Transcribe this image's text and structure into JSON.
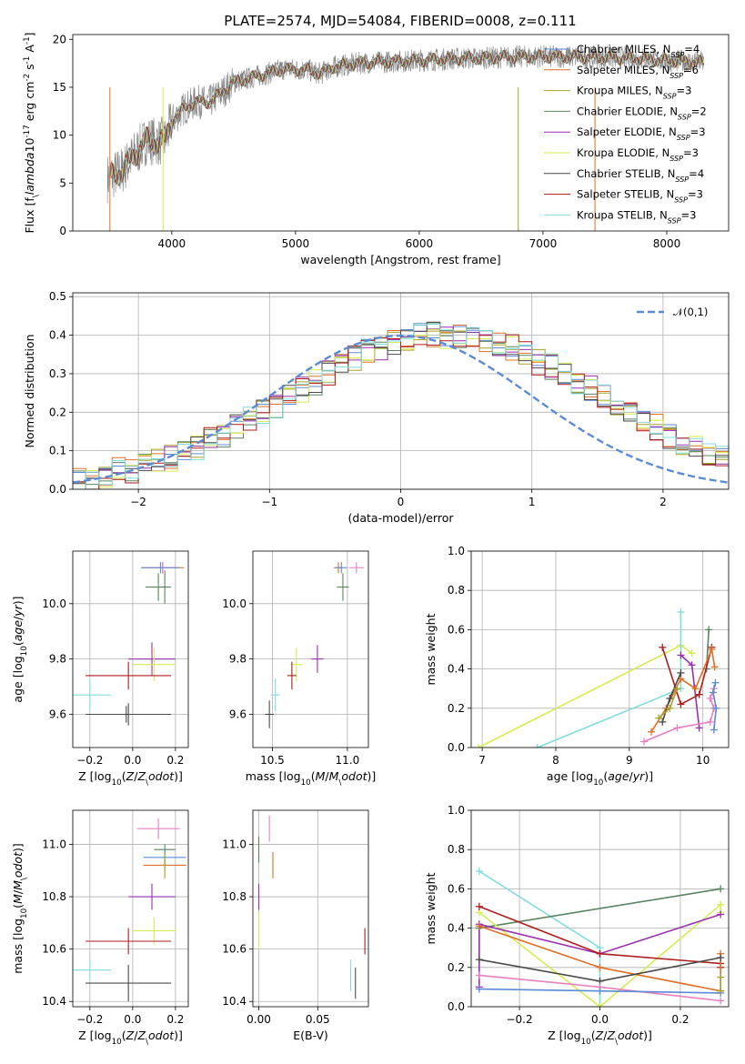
{
  "colors": {
    "chabrier_miles": "#5b8bd6",
    "salpeter_miles": "#e07028",
    "kroupa_miles": "#a8a02a",
    "chabrier_elodie": "#5a8460",
    "salpeter_elodie": "#9a2fb0",
    "kroupa_elodie": "#d6ec50",
    "chabrier_stelib": "#4a4a4a",
    "salpeter_stelib": "#b01c1c",
    "kroupa_stelib": "#82dcdc",
    "pink": "#ea7fc0",
    "data": "#808080",
    "normal": "#5b8bd6"
  },
  "title": "PLATE=2574, MJD=54084, FIBERID=0008, z=0.111",
  "legend_models": [
    "Chabrier MILES, N$_{SSP}$=4",
    "Salpeter MILES, N$_{SSP}$=6",
    "Kroupa MILES, N$_{SSP}$=3",
    "Chabrier ELODIE, N$_{SSP}$=2",
    "Salpeter ELODIE, N$_{SSP}$=3",
    "Kroupa ELODIE, N$_{SSP}$=3",
    "Chabrier STELIB, N$_{SSP}$=4",
    "Salpeter STELIB, N$_{SSP}$=3",
    "Kroupa STELIB, N$_{SSP}$=3"
  ],
  "chart_data": [
    {
      "type": "line",
      "title": "PLATE=2574, MJD=54084, FIBERID=0008, z=0.111",
      "xlabel": "wavelength [Angstrom, rest frame]",
      "ylabel": "Flux [f$_\\lambda$10$^{-17}$ erg cm$^{-2}$ s$^{-1}$ A$^{-1}$]",
      "xlim": [
        3200,
        8500
      ],
      "ylim": [
        0,
        20.5
      ],
      "xticks": [
        4000,
        5000,
        6000,
        7000,
        8000
      ],
      "yticks": [
        0,
        5,
        10,
        15,
        20
      ],
      "legend_position": "upper right",
      "continuum": {
        "x": [
          3480,
          3550,
          3600,
          3700,
          3800,
          3900,
          3950,
          4000,
          4100,
          4200,
          4300,
          4400,
          4500,
          4700,
          4900,
          5100,
          5200,
          5300,
          5500,
          5800,
          6000,
          6300,
          6600,
          6900,
          7200,
          7500,
          7800,
          8000,
          8300
        ],
        "y": [
          5.5,
          6.0,
          6.3,
          8.0,
          9.5,
          9.3,
          9.5,
          11.5,
          12.8,
          13.5,
          13.4,
          14.4,
          15.5,
          16.2,
          16.9,
          16.8,
          16.4,
          17.1,
          17.5,
          17.7,
          17.8,
          18.0,
          18.1,
          18.2,
          18.2,
          18.1,
          18.0,
          17.8,
          17.6
        ]
      },
      "data_range": [
        3480,
        8300
      ],
      "model_range": [
        3500,
        8300
      ],
      "series": [
        {
          "name": "Chabrier MILES, N$_{SSP}$=4",
          "color_key": "chabrier_miles"
        },
        {
          "name": "Salpeter MILES, N$_{SSP}$=6",
          "color_key": "salpeter_miles"
        },
        {
          "name": "Kroupa MILES, N$_{SSP}$=3",
          "color_key": "kroupa_miles"
        },
        {
          "name": "Chabrier ELODIE, N$_{SSP}$=2",
          "color_key": "chabrier_elodie"
        },
        {
          "name": "Salpeter ELODIE, N$_{SSP}$=3",
          "color_key": "salpeter_elodie"
        },
        {
          "name": "Kroupa ELODIE, N$_{SSP}$=3",
          "color_key": "kroupa_elodie"
        },
        {
          "name": "Chabrier STELIB, N$_{SSP}$=4",
          "color_key": "chabrier_stelib"
        },
        {
          "name": "Salpeter STELIB, N$_{SSP}$=3",
          "color_key": "salpeter_stelib"
        },
        {
          "name": "Kroupa STELIB, N$_{SSP}$=3",
          "color_key": "kroupa_stelib"
        }
      ]
    },
    {
      "type": "step",
      "xlabel": "(data-model)/error",
      "ylabel": "Normed distribution",
      "xlim": [
        -2.5,
        2.5
      ],
      "ylim": [
        0,
        0.51
      ],
      "xticks": [
        -2,
        -1,
        0,
        1,
        2
      ],
      "yticks": [
        0.0,
        0.1,
        0.2,
        0.3,
        0.4,
        0.5
      ],
      "grid": true,
      "legend": "$\\mathcal{N}(0,1)$",
      "legend_position": "upper right",
      "bin_width": 0.1,
      "base_values": [
        0.02,
        0.02,
        0.03,
        0.05,
        0.05,
        0.06,
        0.07,
        0.08,
        0.1,
        0.11,
        0.13,
        0.14,
        0.16,
        0.18,
        0.2,
        0.22,
        0.24,
        0.26,
        0.28,
        0.3,
        0.32,
        0.34,
        0.36,
        0.37,
        0.38,
        0.39,
        0.4,
        0.4,
        0.4,
        0.4,
        0.4,
        0.39,
        0.38,
        0.37,
        0.35,
        0.33,
        0.32,
        0.3,
        0.28,
        0.26,
        0.24,
        0.22,
        0.2,
        0.18,
        0.16,
        0.14,
        0.12,
        0.11,
        0.09,
        0.08,
        0.07,
        0.06,
        0.05,
        0.04,
        0.03
      ],
      "series_keys": [
        "chabrier_miles",
        "salpeter_miles",
        "kroupa_miles",
        "chabrier_elodie",
        "salpeter_elodie",
        "kroupa_elodie",
        "chabrier_stelib",
        "salpeter_stelib",
        "kroupa_stelib"
      ],
      "normal_curve": {
        "mean": 0,
        "sigma": 1,
        "color_key": "normal"
      }
    },
    {
      "type": "scatter",
      "xlabel": "Z [log$_{10}$($Z/Z_\\odot$)]",
      "ylabel": "age  [log$_{10}$($age/yr$)]",
      "xlim": [
        -0.28,
        0.26
      ],
      "ylim": [
        9.48,
        10.19
      ],
      "xticks": [
        -0.2,
        0.0,
        0.2
      ],
      "yticks": [
        9.6,
        9.8,
        10.0
      ],
      "points": [
        {
          "x": 0.14,
          "y": 10.13,
          "xerr": 0.1,
          "yerr": 0.02,
          "c": "salpeter_miles"
        },
        {
          "x": 0.14,
          "y": 10.13,
          "xerr": 0.08,
          "yerr": 0.02,
          "c": "pink"
        },
        {
          "x": 0.13,
          "y": 10.13,
          "xerr": 0.09,
          "yerr": 0.02,
          "c": "chabrier_miles"
        },
        {
          "x": 0.12,
          "y": 10.06,
          "xerr": 0.06,
          "yerr": 0.05,
          "c": "chabrier_elodie"
        },
        {
          "x": 0.15,
          "y": 10.06,
          "xerr": 0.01,
          "yerr": 0.06,
          "c": "chabrier_elodie"
        },
        {
          "x": 0.09,
          "y": 9.8,
          "xerr": 0.11,
          "yerr": 0.06,
          "c": "salpeter_elodie"
        },
        {
          "x": 0.1,
          "y": 9.78,
          "xerr": 0.1,
          "yerr": 0.06,
          "c": "kroupa_elodie"
        },
        {
          "x": -0.02,
          "y": 9.74,
          "xerr": 0.2,
          "yerr": 0.05,
          "c": "salpeter_stelib"
        },
        {
          "x": -0.2,
          "y": 9.67,
          "xerr": 0.1,
          "yerr": 0.06,
          "c": "kroupa_stelib"
        },
        {
          "x": -0.02,
          "y": 9.6,
          "xerr": 0.2,
          "yerr": 0.04,
          "c": "chabrier_stelib"
        },
        {
          "x": -0.03,
          "y": 9.6,
          "xerr": 0.01,
          "yerr": 0.03,
          "c": "chabrier_stelib"
        }
      ]
    },
    {
      "type": "scatter",
      "xlabel": "mass [log$_{10}$($M/M_\\odot$)]",
      "ylabel": "",
      "xlim": [
        10.37,
        11.14
      ],
      "ylim": [
        9.48,
        10.19
      ],
      "xticks": [
        10.5,
        11.0
      ],
      "yticks": [
        9.6,
        9.8,
        10.0
      ],
      "points": [
        {
          "x": 11.06,
          "y": 10.13,
          "xerr": 0.05,
          "yerr": 0.02,
          "c": "pink"
        },
        {
          "x": 10.94,
          "y": 10.13,
          "xerr": 0.03,
          "yerr": 0.02,
          "c": "salpeter_miles"
        },
        {
          "x": 10.96,
          "y": 10.13,
          "xerr": 0.04,
          "yerr": 0.02,
          "c": "chabrier_miles"
        },
        {
          "x": 10.97,
          "y": 10.06,
          "xerr": 0.04,
          "yerr": 0.05,
          "c": "chabrier_elodie"
        },
        {
          "x": 10.8,
          "y": 9.8,
          "xerr": 0.04,
          "yerr": 0.05,
          "c": "salpeter_elodie"
        },
        {
          "x": 10.66,
          "y": 9.78,
          "xerr": 0.04,
          "yerr": 0.06,
          "c": "kroupa_elodie"
        },
        {
          "x": 10.63,
          "y": 9.74,
          "xerr": 0.03,
          "yerr": 0.05,
          "c": "salpeter_stelib"
        },
        {
          "x": 10.52,
          "y": 9.67,
          "xerr": 0.03,
          "yerr": 0.06,
          "c": "kroupa_stelib"
        },
        {
          "x": 10.48,
          "y": 9.6,
          "xerr": 0.03,
          "yerr": 0.05,
          "c": "chabrier_stelib"
        }
      ]
    },
    {
      "type": "line",
      "xlabel": "age  [log$_{10}$($age/yr$)]",
      "ylabel": "mass weight",
      "xlim": [
        6.85,
        10.35
      ],
      "ylim": [
        0,
        1
      ],
      "xticks": [
        7,
        8,
        9,
        10
      ],
      "yticks": [
        0.0,
        0.2,
        0.4,
        0.6,
        0.8,
        1.0
      ],
      "series": [
        {
          "c": "kroupa_elodie",
          "x": [
            6.95,
            9.7,
            9.85
          ],
          "y": [
            0.0,
            0.52,
            0.48
          ]
        },
        {
          "c": "kroupa_stelib",
          "x": [
            7.75,
            9.7,
            9.7
          ],
          "y": [
            0.0,
            0.3,
            0.69
          ]
        },
        {
          "c": "chabrier_elodie",
          "x": [
            10.05,
            10.08
          ],
          "y": [
            0.4,
            0.6
          ]
        },
        {
          "c": "salpeter_elodie",
          "x": [
            9.7,
            9.85,
            9.95
          ],
          "y": [
            0.47,
            0.42,
            0.1
          ]
        },
        {
          "c": "salpeter_stelib",
          "x": [
            9.45,
            9.7,
            9.95,
            10.12
          ],
          "y": [
            0.51,
            0.22,
            0.27,
            0.51
          ]
        },
        {
          "c": "salpeter_miles",
          "x": [
            9.3,
            9.5,
            9.7,
            9.9,
            10.12,
            10.16
          ],
          "y": [
            0.08,
            0.2,
            0.35,
            0.3,
            0.5,
            0.41
          ]
        },
        {
          "c": "chabrier_stelib",
          "x": [
            9.45,
            9.55,
            9.7
          ],
          "y": [
            0.13,
            0.25,
            0.38
          ]
        },
        {
          "c": "kroupa_miles",
          "x": [
            9.4,
            9.55,
            9.65
          ],
          "y": [
            0.15,
            0.2,
            0.3
          ]
        },
        {
          "c": "pink",
          "x": [
            9.2,
            9.65,
            10.1,
            10.15,
            10.1,
            10.15
          ],
          "y": [
            0.03,
            0.1,
            0.13,
            0.2,
            0.25,
            0.3
          ]
        },
        {
          "c": "chabrier_miles",
          "x": [
            10.15,
            10.18,
            10.14,
            10.17
          ],
          "y": [
            0.09,
            0.2,
            0.28,
            0.33
          ]
        }
      ]
    },
    {
      "type": "scatter",
      "xlabel": "Z [log$_{10}$($Z/Z_\\odot$)]",
      "ylabel": "mass [log$_{10}$($M/M_\\odot$)]",
      "xlim": [
        -0.28,
        0.26
      ],
      "ylim": [
        10.38,
        11.13
      ],
      "xticks": [
        -0.2,
        0.0,
        0.2
      ],
      "yticks": [
        10.4,
        10.6,
        10.8,
        11.0
      ],
      "points": [
        {
          "x": 0.12,
          "y": 11.06,
          "xerr": 0.1,
          "yerr": 0.04,
          "c": "pink"
        },
        {
          "x": 0.15,
          "y": 10.98,
          "xerr": 0.05,
          "yerr": 0.02,
          "c": "chabrier_elodie"
        },
        {
          "x": 0.15,
          "y": 10.95,
          "xerr": 0.1,
          "yerr": 0.03,
          "c": "chabrier_miles"
        },
        {
          "x": 0.15,
          "y": 10.92,
          "xerr": 0.1,
          "yerr": 0.02,
          "c": "salpeter_miles"
        },
        {
          "x": 0.15,
          "y": 10.92,
          "xerr": 0.01,
          "yerr": 0.05,
          "c": "kroupa_miles"
        },
        {
          "x": 0.09,
          "y": 10.8,
          "xerr": 0.11,
          "yerr": 0.05,
          "c": "salpeter_elodie"
        },
        {
          "x": 0.1,
          "y": 10.67,
          "xerr": 0.1,
          "yerr": 0.05,
          "c": "kroupa_elodie"
        },
        {
          "x": -0.02,
          "y": 10.63,
          "xerr": 0.2,
          "yerr": 0.05,
          "c": "salpeter_stelib"
        },
        {
          "x": -0.2,
          "y": 10.52,
          "xerr": 0.1,
          "yerr": 0.04,
          "c": "kroupa_stelib"
        },
        {
          "x": -0.02,
          "y": 10.47,
          "xerr": 0.2,
          "yerr": 0.07,
          "c": "chabrier_stelib"
        }
      ]
    },
    {
      "type": "scatter",
      "xlabel": "E(B-V)",
      "ylabel": "",
      "xlim": [
        -0.005,
        0.093
      ],
      "ylim": [
        10.38,
        11.13
      ],
      "xticks": [
        0.0,
        0.05
      ],
      "yticks": [
        10.4,
        10.6,
        10.8,
        11.0
      ],
      "points": [
        {
          "x": 0.009,
          "y": 11.06,
          "xerr": 0.0,
          "yerr": 0.05,
          "c": "pink"
        },
        {
          "x": 0.0,
          "y": 10.98,
          "xerr": 0.0,
          "yerr": 0.05,
          "c": "chabrier_elodie"
        },
        {
          "x": 0.012,
          "y": 10.92,
          "xerr": 0.0,
          "yerr": 0.05,
          "c": "salpeter_miles"
        },
        {
          "x": 0.0,
          "y": 10.8,
          "xerr": 0.0,
          "yerr": 0.05,
          "c": "salpeter_elodie"
        },
        {
          "x": 0.0,
          "y": 10.67,
          "xerr": 0.0,
          "yerr": 0.07,
          "c": "kroupa_elodie"
        },
        {
          "x": 0.09,
          "y": 10.63,
          "xerr": 0.0,
          "yerr": 0.05,
          "c": "salpeter_stelib"
        },
        {
          "x": 0.078,
          "y": 10.5,
          "xerr": 0.0,
          "yerr": 0.06,
          "c": "kroupa_stelib"
        },
        {
          "x": 0.082,
          "y": 10.47,
          "xerr": 0.0,
          "yerr": 0.06,
          "c": "chabrier_stelib"
        }
      ]
    },
    {
      "type": "line",
      "xlabel": "Z [log$_{10}$($Z/Z_\\odot$)]",
      "ylabel": "mass weight",
      "xlim": [
        -0.32,
        0.32
      ],
      "ylim": [
        0,
        1
      ],
      "xticks": [
        -0.2,
        0.0,
        0.2
      ],
      "yticks": [
        0.0,
        0.2,
        0.4,
        0.6,
        0.8,
        1.0
      ],
      "series": [
        {
          "c": "kroupa_stelib",
          "x": [
            -0.3,
            0.0,
            0.0
          ],
          "y": [
            0.69,
            0.3,
            0.0
          ]
        },
        {
          "c": "chabrier_elodie",
          "x": [
            -0.3,
            0.3
          ],
          "y": [
            0.4,
            0.6
          ]
        },
        {
          "c": "kroupa_elodie",
          "x": [
            -0.3,
            0.0,
            0.3,
            0.3
          ],
          "y": [
            0.48,
            0.0,
            0.52,
            0.48
          ]
        },
        {
          "c": "salpeter_elodie",
          "x": [
            -0.3,
            -0.3,
            0.0,
            0.3
          ],
          "y": [
            0.1,
            0.42,
            0.27,
            0.47
          ]
        },
        {
          "c": "salpeter_stelib",
          "x": [
            -0.3,
            0.0,
            0.3,
            0.3
          ],
          "y": [
            0.51,
            0.27,
            0.22,
            0.2
          ]
        },
        {
          "c": "salpeter_miles",
          "x": [
            -0.3,
            0.0,
            0.3,
            0.3
          ],
          "y": [
            0.41,
            0.2,
            0.08,
            0.27
          ]
        },
        {
          "c": "chabrier_stelib",
          "x": [
            -0.3,
            0.0,
            0.3
          ],
          "y": [
            0.24,
            0.13,
            0.25
          ]
        },
        {
          "c": "pink",
          "x": [
            -0.3,
            0.0,
            0.3
          ],
          "y": [
            0.16,
            0.1,
            0.03
          ]
        },
        {
          "c": "chabrier_miles",
          "x": [
            -0.3,
            0.0,
            0.3
          ],
          "y": [
            0.09,
            0.08,
            0.07
          ]
        },
        {
          "c": "kroupa_miles",
          "x": [
            0.3,
            0.3
          ],
          "y": [
            0.15,
            0.08
          ]
        }
      ]
    }
  ]
}
